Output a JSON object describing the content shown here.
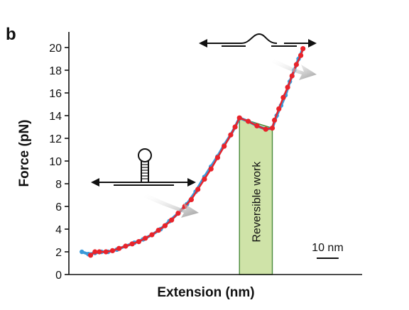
{
  "chart_data": {
    "type": "scatter",
    "panel_label": "b",
    "xlabel": "Extension (nm)",
    "ylabel": "Force (pN)",
    "ylim": [
      0,
      21
    ],
    "y_ticks": [
      0,
      2,
      4,
      6,
      8,
      10,
      12,
      14,
      16,
      18,
      20
    ],
    "x_ticks": [],
    "scale_bar_label": "10 nm",
    "scale_bar_nm": 10,
    "xlim": [
      -3,
      117
    ],
    "colors": {
      "stretch": "#3a9ad9",
      "relax": "#e8232a",
      "work_fill": "#cfe3a8",
      "work_edge": "#4a8a3a",
      "arrow": "#a0a0a0",
      "ink": "#111111"
    },
    "annotations": [
      {
        "text": "Reversible work",
        "type": "shaded-region",
        "x_range": [
          72,
          87
        ],
        "y_range": [
          0,
          13.8
        ]
      }
    ],
    "icons": [
      "hairpin-icon",
      "unfolded-ssdna-icon",
      "pull-arrow-icon"
    ],
    "series": [
      {
        "role": "stretch",
        "x": [
          0,
          3,
          6,
          9,
          12,
          16,
          20,
          24,
          28,
          32,
          36,
          40,
          44,
          48,
          52,
          56,
          59,
          62,
          65,
          68,
          70,
          72,
          76,
          80,
          84,
          87,
          89,
          91,
          93,
          95,
          97,
          99,
          101
        ],
        "y": [
          2.0,
          1.8,
          1.9,
          2.0,
          2.0,
          2.2,
          2.5,
          2.8,
          3.1,
          3.5,
          4.0,
          4.7,
          5.4,
          6.2,
          7.3,
          8.6,
          9.5,
          10.4,
          11.4,
          12.3,
          13.0,
          13.8,
          13.5,
          13.1,
          12.8,
          12.9,
          14.0,
          14.9,
          15.8,
          17.0,
          18.0,
          19.0,
          19.9
        ]
      },
      {
        "role": "relax",
        "x": [
          4,
          6,
          8,
          11,
          14,
          17,
          20,
          23,
          26,
          29,
          32,
          35,
          38,
          41,
          44,
          47,
          50,
          53,
          56,
          59,
          62,
          65,
          68,
          70,
          72,
          76,
          80,
          84,
          87,
          88,
          90,
          92,
          94,
          96,
          98,
          100,
          101
        ],
        "y": [
          1.7,
          2.0,
          2.0,
          2.0,
          2.1,
          2.3,
          2.5,
          2.7,
          2.9,
          3.2,
          3.5,
          3.9,
          4.3,
          4.8,
          5.4,
          6.0,
          6.6,
          7.5,
          8.4,
          9.3,
          10.3,
          11.3,
          12.3,
          13.0,
          13.8,
          13.5,
          13.1,
          12.8,
          12.9,
          13.6,
          14.6,
          15.6,
          16.5,
          17.5,
          18.5,
          19.3,
          19.9
        ]
      }
    ]
  }
}
